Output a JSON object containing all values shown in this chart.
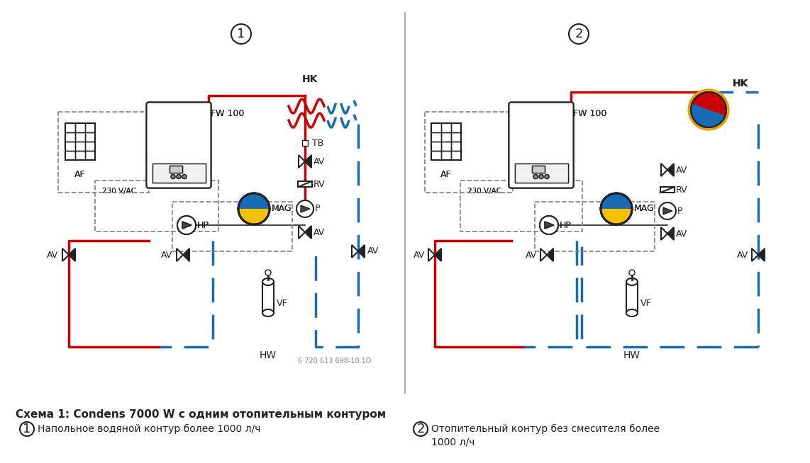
{
  "bg_color": "#ffffff",
  "title_bold": "Схема 1: Condens 7000 W с одним отопительным контуром",
  "divider_color": "#aaaaaa",
  "red": "#cc0000",
  "blue_dashed": "#1a6bb5",
  "black": "#222222",
  "gray": "#888888",
  "label_AF": "AF",
  "label_FW": "FW 100",
  "label_MAG": "MAG",
  "label_HP": "HP",
  "label_HK": "HK",
  "label_TB": "TB",
  "label_AV": "AV",
  "label_RV": "RV",
  "label_P": "P",
  "label_VF": "VF",
  "label_HW": "HW",
  "label_230": "230 V/AC",
  "label_code": "6 720 613 698-10.1O",
  "legend_title": "Схема 1: Condens 7000 W с одним отопительным контуром",
  "legend_1": "Напольное водяной контур более 1000 л/ч",
  "legend_2_line1": "Отопительный контур без смесителя более",
  "legend_2_line2": "1000 л/ч"
}
